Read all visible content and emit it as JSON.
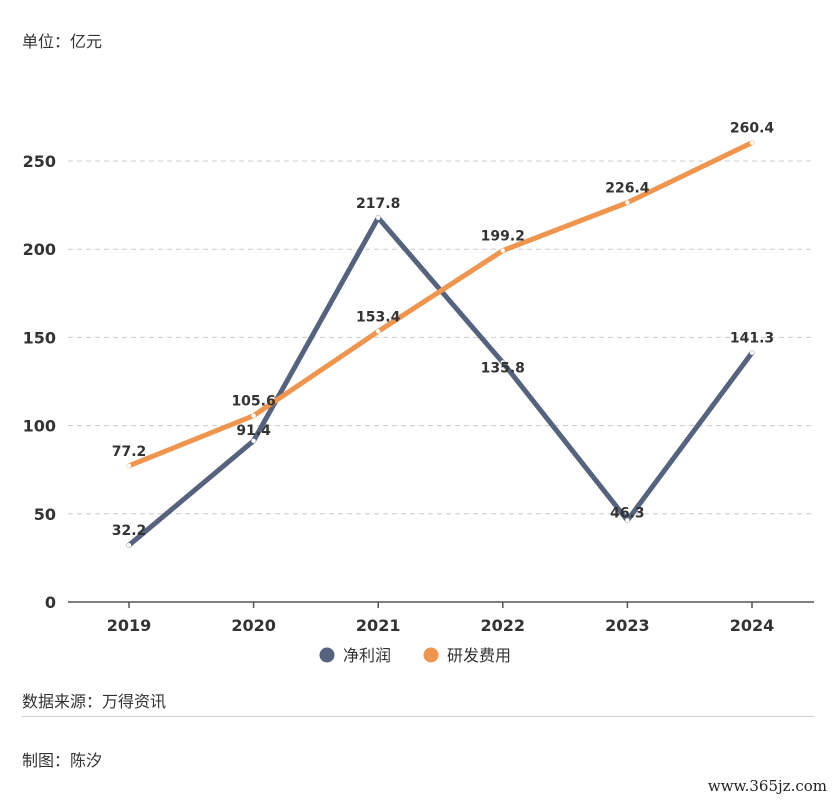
{
  "unit_label": "单位：亿元",
  "source_label": "数据来源：万得资讯",
  "author_label": "制图：陈汐",
  "watermark": "www.365jz.com",
  "colors": {
    "net_profit": "#56637f",
    "rd_expense": "#f0954e",
    "grid": "#cccccc",
    "axis": "#555555"
  },
  "chart_data": {
    "type": "line",
    "categories": [
      "2019",
      "2020",
      "2021",
      "2022",
      "2023",
      "2024"
    ],
    "series": [
      {
        "name": "净利润",
        "values": [
          32.2,
          91.4,
          217.8,
          135.8,
          46.3,
          141.3
        ]
      },
      {
        "name": "研发费用",
        "values": [
          77.2,
          105.6,
          153.4,
          199.2,
          226.4,
          260.4
        ]
      }
    ],
    "yticks": [
      0,
      50,
      100,
      150,
      200,
      250
    ],
    "ylim": [
      0,
      250
    ],
    "grid": true,
    "legend_position": "bottom-center"
  }
}
